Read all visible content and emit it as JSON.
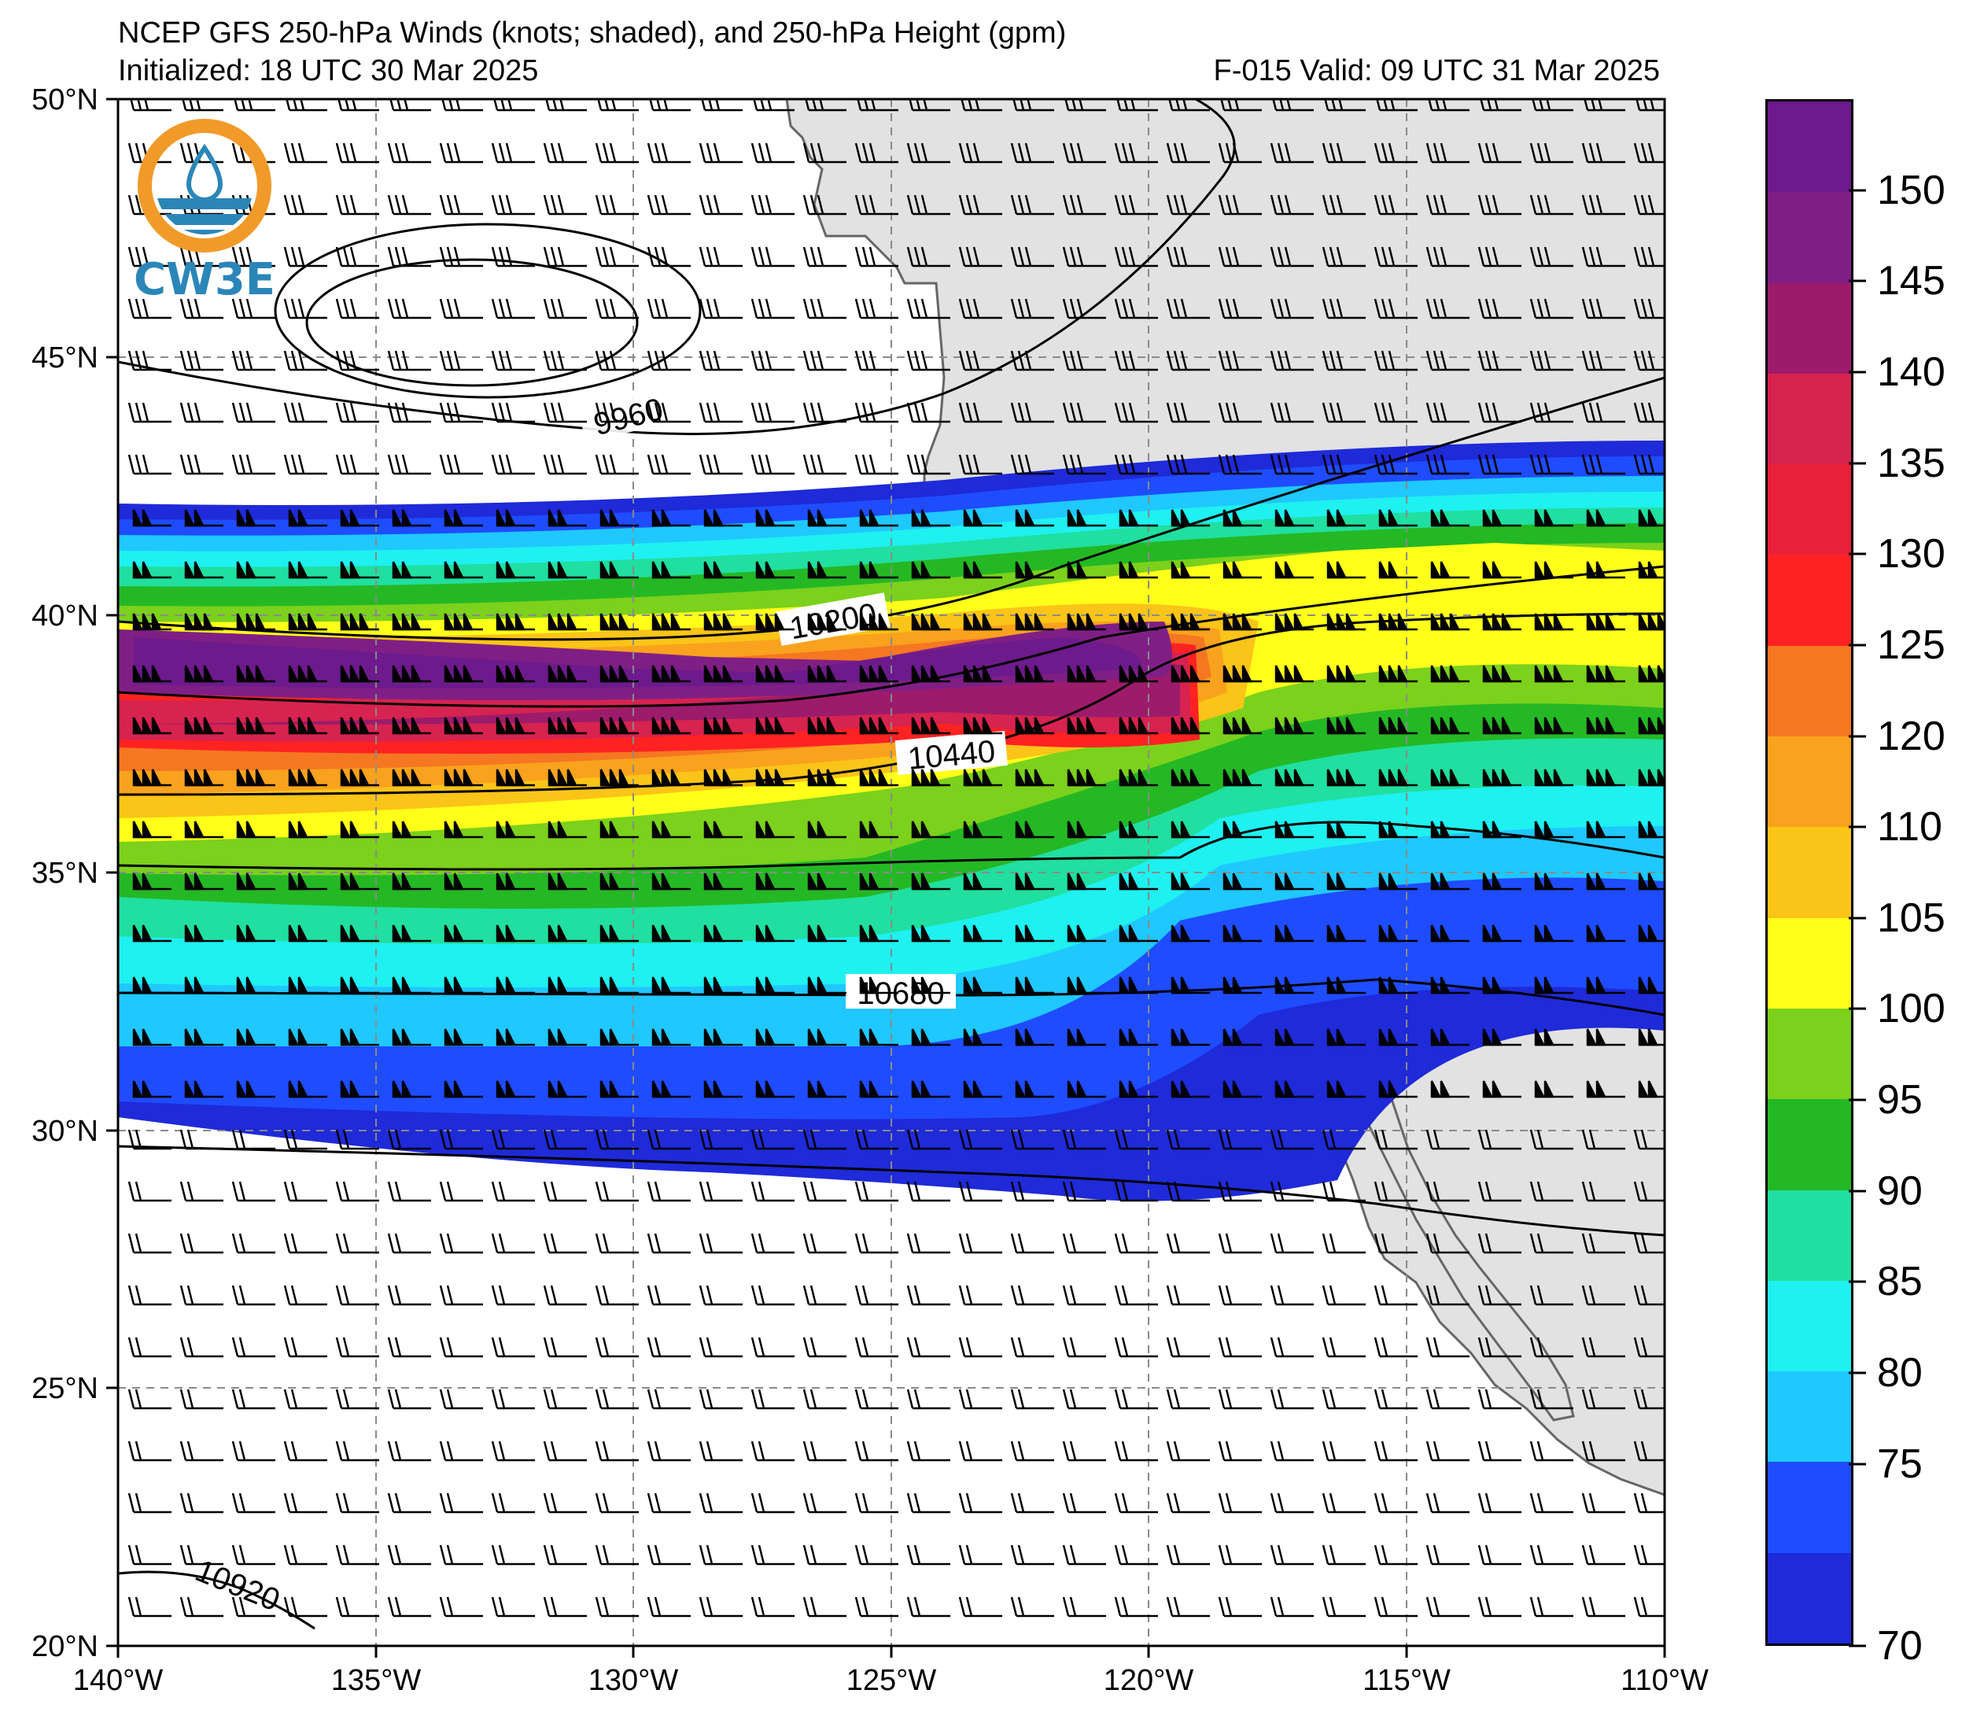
{
  "header": {
    "title": "NCEP GFS 250-hPa Winds (knots; shaded), and 250-hPa Height (gpm)",
    "initialized": "Initialized: 18 UTC 30 Mar 2025",
    "valid": "F-015  Valid: 09 UTC 31 Mar 2025"
  },
  "logo": {
    "text": "CW3E",
    "color": "#2b86b8",
    "ring_color": "#f19a2a"
  },
  "axes": {
    "lat_labels": [
      "50°N",
      "45°N",
      "40°N",
      "35°N",
      "30°N",
      "25°N",
      "20°N"
    ],
    "lon_labels": [
      "140°W",
      "135°W",
      "130°W",
      "125°W",
      "120°W",
      "115°W",
      "110°W"
    ]
  },
  "contours": {
    "labels": [
      "9960",
      "10200",
      "10440",
      "10680",
      "10920"
    ],
    "color": "#000000"
  },
  "colorbar": {
    "labels": [
      "150",
      "145",
      "140",
      "135",
      "130",
      "125",
      "120",
      "110",
      "105",
      "100",
      "95",
      "90",
      "85",
      "80",
      "75",
      "70"
    ],
    "colors_top_to_bottom": [
      "#6d1a8c",
      "#7f1f86",
      "#9c1b6b",
      "#d6234f",
      "#e8203a",
      "#ff2222",
      "#f57722",
      "#f9a21d",
      "#fbc418",
      "#ffff1a",
      "#7bd11c",
      "#25b825",
      "#20dfa0",
      "#1ff0f0",
      "#1fc8ff",
      "#1f4cff",
      "#1f2ad8"
    ]
  },
  "colors": {
    "land": "#e2e2e2",
    "grid": "#8a8a8a"
  }
}
